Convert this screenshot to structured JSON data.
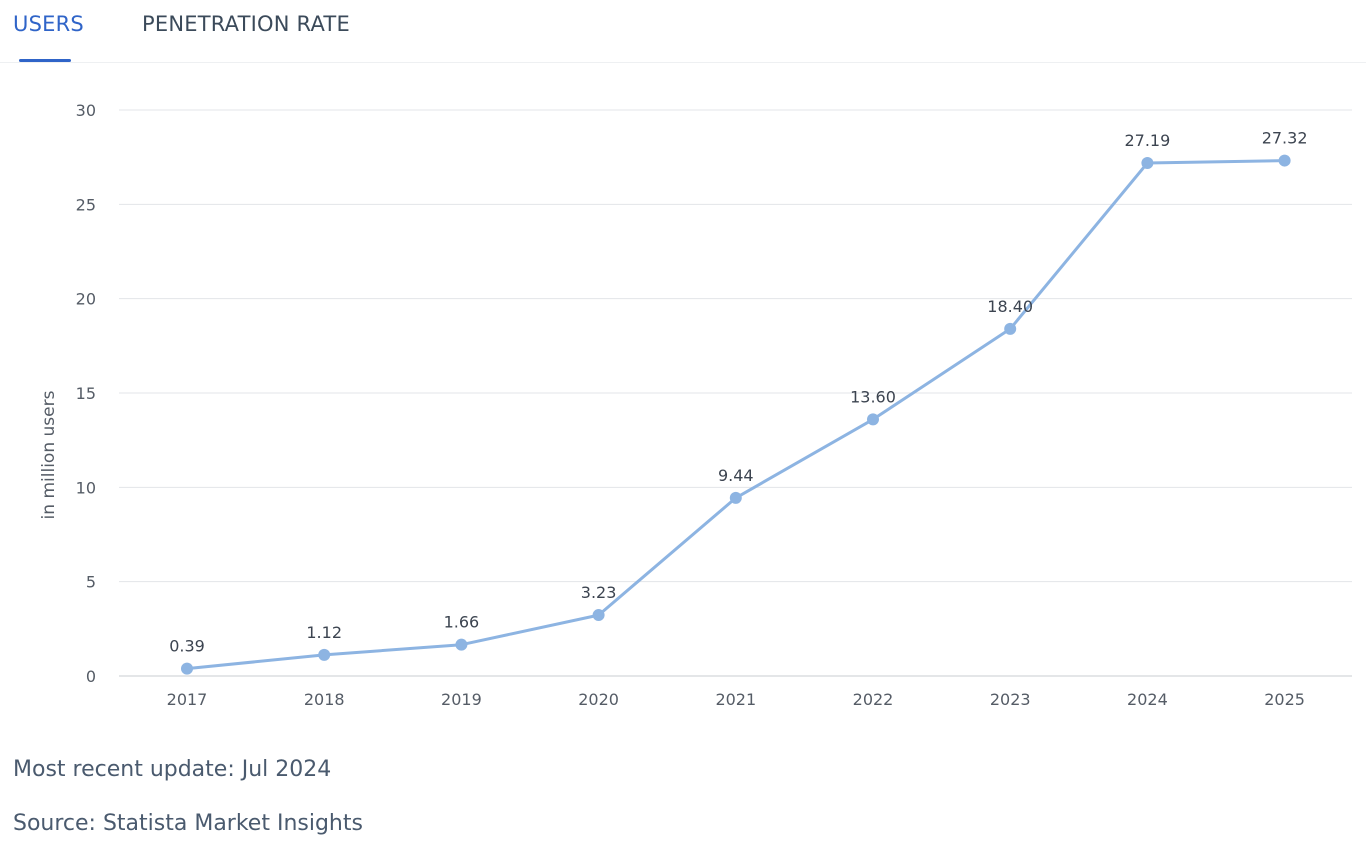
{
  "tabs": [
    {
      "label": "USERS",
      "active": true
    },
    {
      "label": "PENETRATION RATE",
      "active": false
    }
  ],
  "colors": {
    "accent": "#2f64c8",
    "line": "#8db4e2",
    "grid": "#e3e5e8",
    "axis_text": "#555c66"
  },
  "chart_data": {
    "type": "line",
    "categories": [
      "2017",
      "2018",
      "2019",
      "2020",
      "2021",
      "2022",
      "2023",
      "2024",
      "2025"
    ],
    "series": [
      {
        "values": [
          0.39,
          1.12,
          1.66,
          3.23,
          9.44,
          13.6,
          18.4,
          27.19,
          27.32
        ],
        "data_labels": [
          "0.39",
          "1.12",
          "1.66",
          "3.23",
          "9.44",
          "13.60",
          "18.40",
          "27.19",
          "27.32"
        ]
      }
    ],
    "ylabel": "in million users",
    "ylim": [
      0,
      30
    ],
    "yticks": [
      "0",
      "5",
      "10",
      "15",
      "20",
      "25",
      "30"
    ],
    "grid": true,
    "legend": false
  },
  "footer": {
    "update": "Most recent update: Jul 2024",
    "source": "Source: Statista Market Insights"
  }
}
